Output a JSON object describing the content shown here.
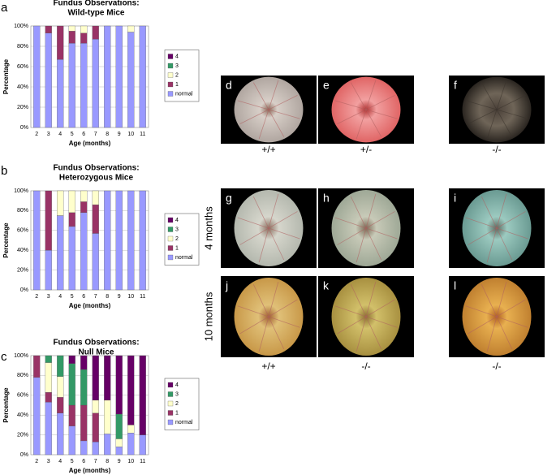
{
  "chart_data": [
    {
      "type": "stacked-bar",
      "title": "Fundus Observations:",
      "subtitle": "Wild-type Mice",
      "xlabel": "Age (months)",
      "ylabel": "Percentage",
      "categories": [
        "2",
        "3",
        "4",
        "5",
        "6",
        "7",
        "8",
        "9",
        "10",
        "11"
      ],
      "series": [
        {
          "name": "normal",
          "color": "#9999ff",
          "values": [
            100,
            93,
            67,
            83,
            83,
            87,
            100,
            100,
            94,
            100
          ]
        },
        {
          "name": "1",
          "color": "#993366",
          "values": [
            0,
            7,
            33,
            12,
            10,
            13,
            0,
            0,
            0,
            0
          ]
        },
        {
          "name": "2",
          "color": "#ffffcc",
          "values": [
            0,
            0,
            0,
            5,
            7,
            0,
            0,
            0,
            6,
            0
          ]
        },
        {
          "name": "3",
          "color": "#339966",
          "values": [
            0,
            0,
            0,
            0,
            0,
            0,
            0,
            0,
            0,
            0
          ]
        },
        {
          "name": "4",
          "color": "#660066",
          "values": [
            0,
            0,
            0,
            0,
            0,
            0,
            0,
            0,
            0,
            0
          ]
        }
      ],
      "ylim": [
        0,
        100
      ],
      "yticks": [
        {
          "value": 0,
          "label": "0%"
        },
        {
          "value": 20,
          "label": "20%"
        },
        {
          "value": 40,
          "label": "40%"
        },
        {
          "value": 60,
          "label": "60%"
        },
        {
          "value": 80,
          "label": "80%"
        },
        {
          "value": 100,
          "label": "100%"
        }
      ],
      "grid": true
    },
    {
      "type": "stacked-bar",
      "title": "Fundus Observations:",
      "subtitle": "Heterozygous Mice",
      "xlabel": "Age (months)",
      "ylabel": "Percentage",
      "categories": [
        "2",
        "3",
        "4",
        "5",
        "6",
        "7",
        "8",
        "9",
        "10",
        "11"
      ],
      "series": [
        {
          "name": "normal",
          "color": "#9999ff",
          "values": [
            100,
            40,
            75,
            64,
            78,
            57,
            100,
            100,
            100,
            100
          ]
        },
        {
          "name": "1",
          "color": "#993366",
          "values": [
            0,
            60,
            0,
            14,
            11,
            29,
            0,
            0,
            0,
            0
          ]
        },
        {
          "name": "2",
          "color": "#ffffcc",
          "values": [
            0,
            0,
            25,
            22,
            11,
            14,
            0,
            0,
            0,
            0
          ]
        },
        {
          "name": "3",
          "color": "#339966",
          "values": [
            0,
            0,
            0,
            0,
            0,
            0,
            0,
            0,
            0,
            0
          ]
        },
        {
          "name": "4",
          "color": "#660066",
          "values": [
            0,
            0,
            0,
            0,
            0,
            0,
            0,
            0,
            0,
            0
          ]
        }
      ],
      "ylim": [
        0,
        100
      ],
      "yticks": [
        {
          "value": 0,
          "label": "0%"
        },
        {
          "value": 20,
          "label": "20%"
        },
        {
          "value": 40,
          "label": "40%"
        },
        {
          "value": 60,
          "label": "60%"
        },
        {
          "value": 80,
          "label": "80%"
        },
        {
          "value": 100,
          "label": "100%"
        }
      ],
      "grid": true
    },
    {
      "type": "stacked-bar",
      "title": "Fundus Observations:",
      "subtitle": "Null Mice",
      "xlabel": "Age (months)",
      "ylabel": "Percentage",
      "categories": [
        "2",
        "3",
        "4",
        "5",
        "6",
        "7",
        "8",
        "9",
        "10",
        "11"
      ],
      "series": [
        {
          "name": "normal",
          "color": "#9999ff",
          "values": [
            78,
            53,
            42,
            29,
            14,
            13,
            21,
            8,
            22,
            20
          ]
        },
        {
          "name": "1",
          "color": "#993366",
          "values": [
            22,
            10,
            16,
            21,
            36,
            29,
            0,
            0,
            0,
            0
          ]
        },
        {
          "name": "2",
          "color": "#ffffcc",
          "values": [
            0,
            30,
            21,
            0,
            0,
            13,
            34,
            8,
            8,
            0
          ]
        },
        {
          "name": "3",
          "color": "#339966",
          "values": [
            0,
            7,
            21,
            42,
            36,
            0,
            0,
            25,
            0,
            0
          ]
        },
        {
          "name": "4",
          "color": "#660066",
          "values": [
            0,
            0,
            0,
            8,
            14,
            45,
            45,
            59,
            70,
            80
          ]
        }
      ],
      "ylim": [
        0,
        100
      ],
      "yticks": [
        {
          "value": 0,
          "label": "0%"
        },
        {
          "value": 20,
          "label": "20%"
        },
        {
          "value": 40,
          "label": "40%"
        },
        {
          "value": 60,
          "label": "60%"
        },
        {
          "value": 80,
          "label": "80%"
        },
        {
          "value": 100,
          "label": "100%"
        }
      ],
      "grid": true
    }
  ],
  "panels": [
    "a",
    "b",
    "c"
  ],
  "photos": {
    "letters": [
      "d",
      "e",
      "f",
      "g",
      "h",
      "i",
      "j",
      "k",
      "l"
    ],
    "top_genotypes": [
      "+/+",
      "+/-",
      "-/-"
    ],
    "bottom_genotypes": [
      "+/+",
      "-/-",
      "-/-"
    ],
    "rows": [
      "4 months",
      "10 months"
    ]
  }
}
